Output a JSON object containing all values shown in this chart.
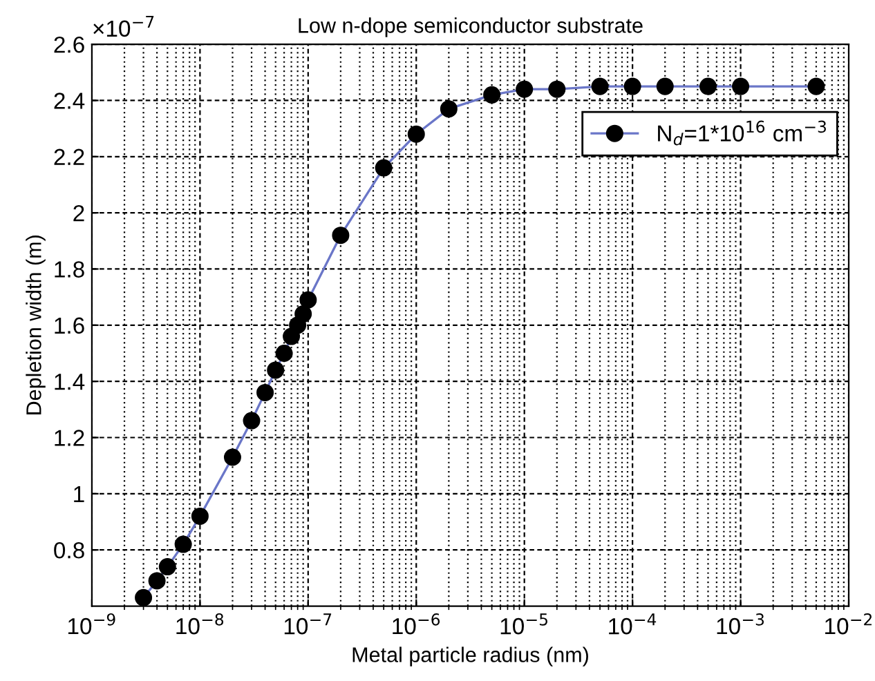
{
  "chart_data": {
    "type": "line",
    "title": "Low n-dope semiconductor substrate",
    "xlabel": "Metal particle radius (nm)",
    "ylabel": "Depletion width (m)",
    "annotations": [
      "×10$^{−7}$"
    ],
    "log": "x",
    "grid": true,
    "legend": "top right",
    "marker": "circle",
    "line_style": "solid",
    "xlim": [
      1e-09,
      0.01
    ],
    "xticks": [
      {
        "value": 1e-09,
        "label": "10$^{−9}$"
      },
      {
        "value": 1e-08,
        "label": "10$^{−8}$"
      },
      {
        "value": 1e-07,
        "label": "10$^{−7}$"
      },
      {
        "value": 1e-06,
        "label": "10$^{−6}$"
      },
      {
        "value": 1e-05,
        "label": "10$^{−5}$"
      },
      {
        "value": 0.0001,
        "label": "10$^{−4}$"
      },
      {
        "value": 0.001,
        "label": "10$^{−3}$"
      },
      {
        "value": 0.01,
        "label": "10$^{−2}$"
      }
    ],
    "ylim": [
      0.6,
      2.6
    ],
    "yticks": [
      0.8,
      1,
      1.2,
      1.4,
      1.6,
      1.8,
      2,
      2.2,
      2.4,
      2.6
    ],
    "x": [
      3e-09,
      4e-09,
      5e-09,
      7e-09,
      1e-08,
      2e-08,
      3e-08,
      4e-08,
      5e-08,
      6e-08,
      7e-08,
      8e-08,
      9e-08,
      1e-07,
      2e-07,
      5e-07,
      1e-06,
      2e-06,
      5e-06,
      1e-05,
      2e-05,
      5e-05,
      0.0001,
      0.0002,
      0.0005,
      0.001,
      0.005
    ],
    "series": [
      {
        "name": "N$_{d}$=1*10$^{16}$ cm$^{−3}$",
        "color": "#6a76c8",
        "values": [
          0.63,
          0.69,
          0.74,
          0.82,
          0.92,
          1.13,
          1.26,
          1.36,
          1.44,
          1.5,
          1.56,
          1.6,
          1.64,
          1.69,
          1.92,
          2.16,
          2.28,
          2.37,
          2.42,
          2.44,
          2.44,
          2.45,
          2.45,
          2.45,
          2.45,
          2.45,
          2.45
        ]
      }
    ]
  }
}
